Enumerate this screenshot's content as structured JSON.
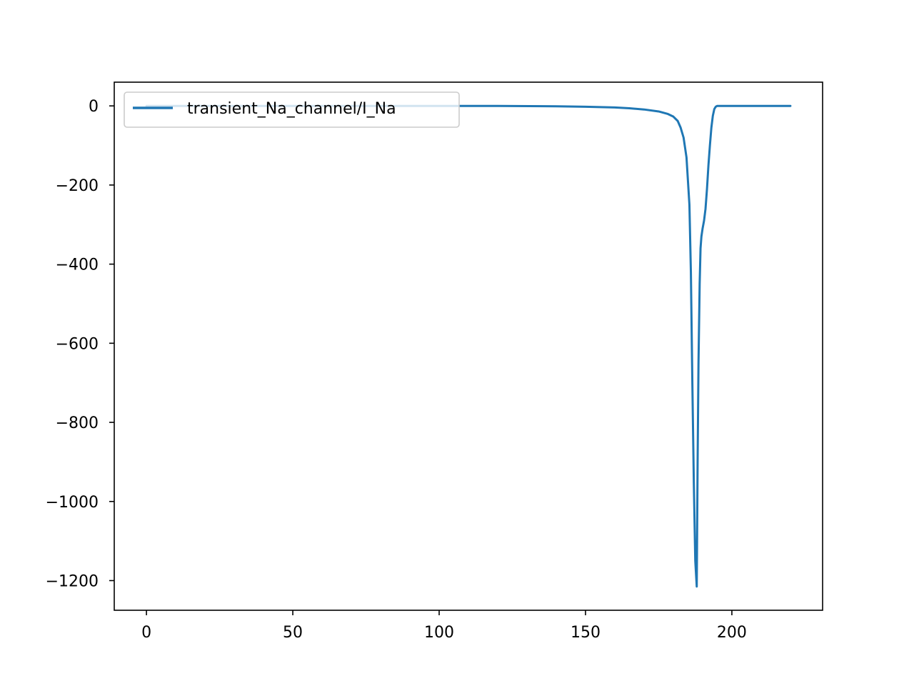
{
  "chart_data": {
    "type": "line",
    "title": "",
    "xlabel": "",
    "ylabel": "",
    "xlim": [
      -11,
      231
    ],
    "ylim": [
      -1275,
      60
    ],
    "xticks": [
      0,
      50,
      100,
      150,
      200
    ],
    "xtick_labels": [
      "0",
      "50",
      "100",
      "150",
      "200"
    ],
    "yticks": [
      0,
      -200,
      -400,
      -600,
      -800,
      -1000,
      -1200
    ],
    "ytick_labels": [
      "0",
      "−200",
      "−400",
      "−600",
      "−800",
      "−1000",
      "−1200"
    ],
    "grid": false,
    "legend": {
      "placement": "upper-left"
    },
    "series": [
      {
        "name": "transient_Na_channel/I_Na",
        "color": "#1f77b4",
        "x": [
          0,
          20,
          40,
          60,
          80,
          100,
          120,
          140,
          150,
          160,
          165,
          170,
          175,
          178,
          180,
          181.5,
          182.5,
          183.5,
          184.5,
          185.5,
          186,
          186.5,
          187,
          187.5,
          188,
          188.3,
          188.6,
          189,
          189.3,
          189.6,
          190,
          190.5,
          191,
          191.5,
          192,
          192.5,
          193,
          193.5,
          194,
          194.5,
          195,
          195.5,
          196,
          200,
          210,
          220
        ],
        "y": [
          0,
          0,
          0,
          0,
          0,
          0,
          0,
          -1,
          -2,
          -4,
          -6,
          -9,
          -14,
          -20,
          -27,
          -38,
          -55,
          -80,
          -130,
          -250,
          -420,
          -700,
          -950,
          -1150,
          -1215,
          -900,
          -650,
          -450,
          -360,
          -330,
          -310,
          -290,
          -260,
          -210,
          -150,
          -100,
          -55,
          -25,
          -8,
          -2,
          0,
          0,
          0,
          0,
          0,
          0
        ]
      }
    ]
  }
}
